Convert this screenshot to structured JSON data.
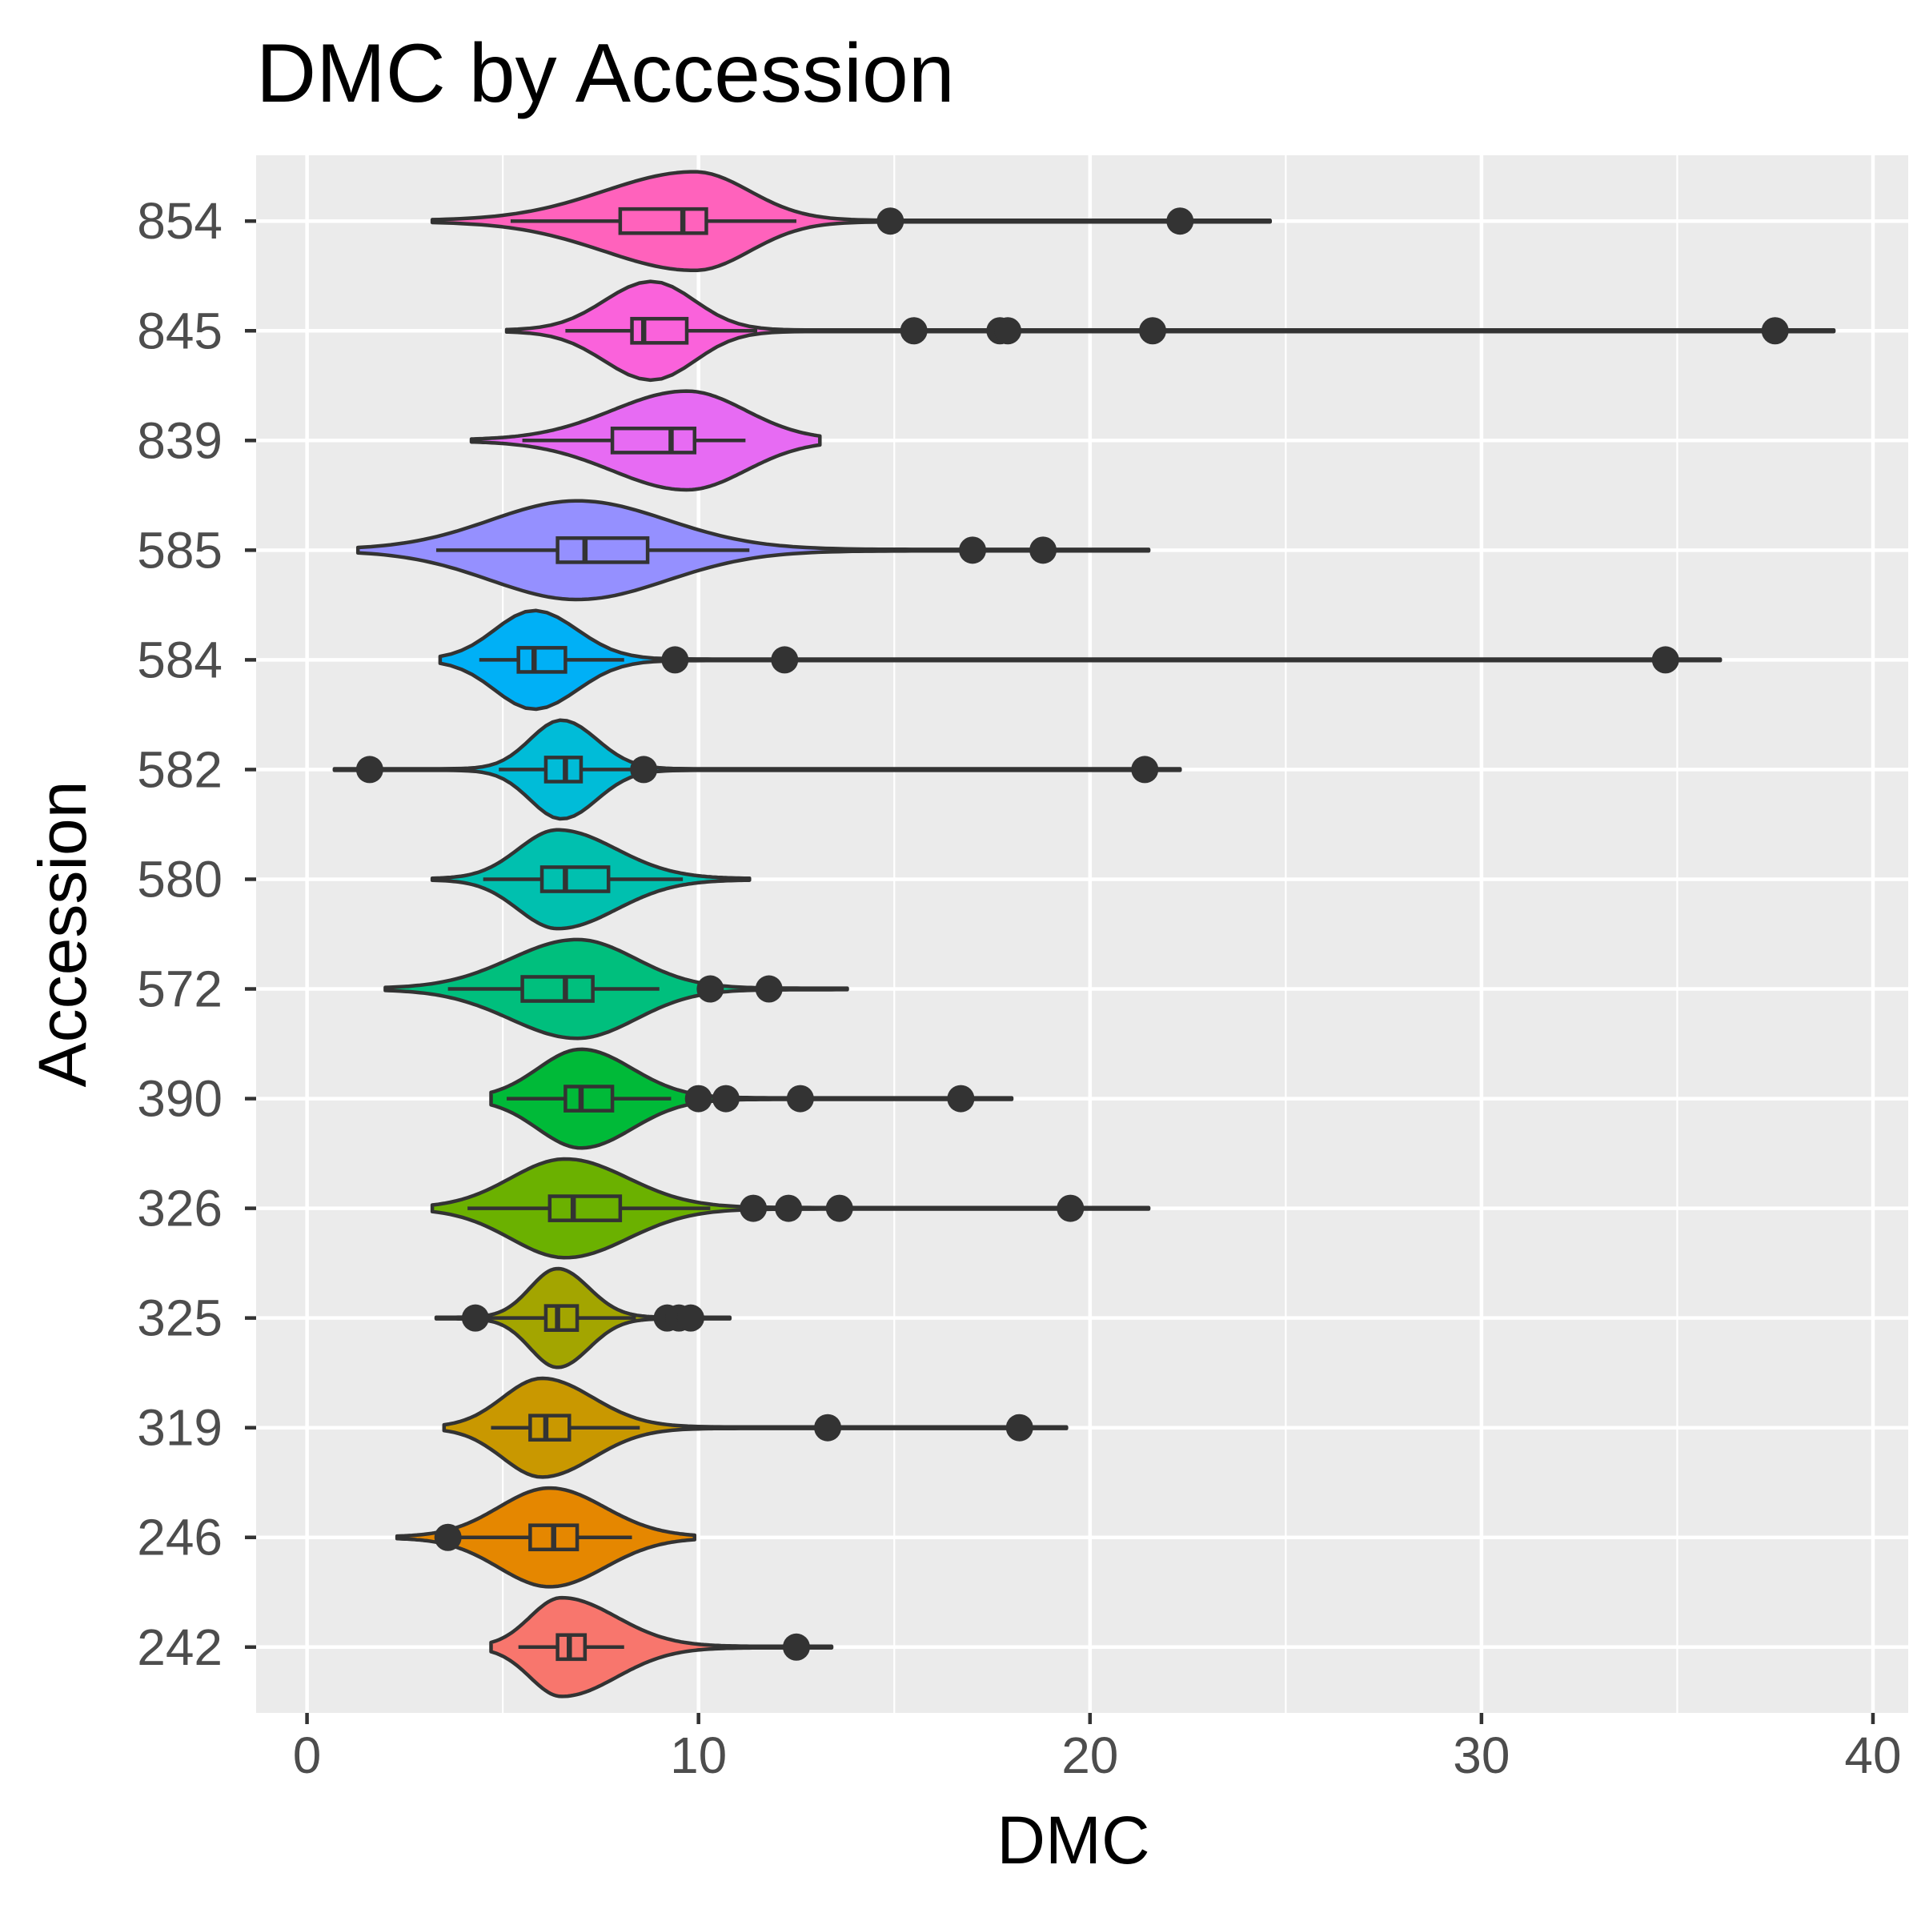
{
  "chart_data": {
    "type": "violin",
    "title": "DMC by Accession",
    "xlabel": "DMC",
    "ylabel": "Accession",
    "xlim": [
      -1.3,
      40.9
    ],
    "xticks": [
      0,
      10,
      20,
      30,
      40
    ],
    "orientation": "horizontal",
    "grid": true,
    "legend": "none",
    "categories": [
      "242",
      "246",
      "319",
      "325",
      "326",
      "390",
      "572",
      "580",
      "582",
      "584",
      "585",
      "839",
      "845",
      "854"
    ],
    "series": [
      {
        "name": "242",
        "color": "#F8766D",
        "min": 4.7,
        "max": 13.4,
        "q1": 6.4,
        "median": 6.7,
        "q3": 7.1,
        "whisker_low": 5.4,
        "whisker_high": 8.1,
        "mode": 6.5,
        "spread_left": 0.8,
        "spread_right": 1.4,
        "outliers": [
          12.5
        ]
      },
      {
        "name": "246",
        "color": "#E58700",
        "min": 2.3,
        "max": 9.9,
        "q1": 5.7,
        "median": 6.3,
        "q3": 6.9,
        "whisker_low": 3.9,
        "whisker_high": 8.3,
        "mode": 6.2,
        "spread_left": 1.3,
        "spread_right": 1.4,
        "outliers": [
          3.6
        ]
      },
      {
        "name": "319",
        "color": "#C99800",
        "min": 3.5,
        "max": 19.4,
        "q1": 5.7,
        "median": 6.1,
        "q3": 6.7,
        "whisker_low": 4.7,
        "whisker_high": 8.5,
        "mode": 6.0,
        "spread_left": 1.0,
        "spread_right": 1.3,
        "outliers": [
          13.3,
          18.2
        ]
      },
      {
        "name": "325",
        "color": "#A3A500",
        "min": 3.3,
        "max": 10.8,
        "q1": 6.1,
        "median": 6.4,
        "q3": 6.9,
        "whisker_low": 4.6,
        "whisker_high": 8.4,
        "mode": 6.4,
        "spread_left": 0.7,
        "spread_right": 0.8,
        "outliers": [
          4.3,
          9.2,
          9.5,
          9.8
        ]
      },
      {
        "name": "326",
        "color": "#6BB100",
        "min": 3.2,
        "max": 21.5,
        "q1": 6.2,
        "median": 6.8,
        "q3": 8.0,
        "whisker_low": 4.1,
        "whisker_high": 10.3,
        "mode": 6.6,
        "spread_left": 1.4,
        "spread_right": 1.6,
        "outliers": [
          11.4,
          12.3,
          13.6,
          19.5
        ]
      },
      {
        "name": "390",
        "color": "#00BA38",
        "min": 4.7,
        "max": 18.0,
        "q1": 6.6,
        "median": 7.0,
        "q3": 7.8,
        "whisker_low": 5.1,
        "whisker_high": 9.3,
        "mode": 7.0,
        "spread_left": 1.1,
        "spread_right": 1.3,
        "outliers": [
          10.0,
          10.7,
          12.6,
          16.7
        ]
      },
      {
        "name": "572",
        "color": "#00BF7D",
        "min": 2.0,
        "max": 13.8,
        "q1": 5.5,
        "median": 6.6,
        "q3": 7.3,
        "whisker_low": 3.6,
        "whisker_high": 9.0,
        "mode": 6.9,
        "spread_left": 1.7,
        "spread_right": 1.5,
        "outliers": [
          10.3,
          11.8
        ]
      },
      {
        "name": "580",
        "color": "#00C0AF",
        "min": 3.2,
        "max": 11.3,
        "q1": 6.0,
        "median": 6.6,
        "q3": 7.7,
        "whisker_low": 4.5,
        "whisker_high": 9.6,
        "mode": 6.4,
        "spread_left": 1.0,
        "spread_right": 1.5,
        "outliers": []
      },
      {
        "name": "582",
        "color": "#00BCD8",
        "min": 0.7,
        "max": 22.3,
        "q1": 6.1,
        "median": 6.6,
        "q3": 7.0,
        "whisker_low": 4.9,
        "whisker_high": 8.3,
        "mode": 6.5,
        "spread_left": 0.8,
        "spread_right": 0.9,
        "outliers": [
          1.6,
          8.6,
          21.4
        ]
      },
      {
        "name": "584",
        "color": "#00B0F6",
        "min": 3.4,
        "max": 36.1,
        "q1": 5.4,
        "median": 5.8,
        "q3": 6.6,
        "whisker_low": 4.4,
        "whisker_high": 8.1,
        "mode": 5.8,
        "spread_left": 1.0,
        "spread_right": 1.1,
        "outliers": [
          9.4,
          12.2,
          34.7
        ]
      },
      {
        "name": "585",
        "color": "#9590FF",
        "min": 1.3,
        "max": 21.5,
        "q1": 6.4,
        "median": 7.1,
        "q3": 8.7,
        "whisker_low": 3.3,
        "whisker_high": 11.3,
        "mode": 6.9,
        "spread_left": 2.2,
        "spread_right": 2.3,
        "outliers": [
          17.0,
          18.8
        ]
      },
      {
        "name": "839",
        "color": "#E76BF3",
        "min": 4.2,
        "max": 13.1,
        "q1": 7.8,
        "median": 9.3,
        "q3": 9.9,
        "whisker_low": 5.5,
        "whisker_high": 11.2,
        "mode": 9.7,
        "spread_left": 1.9,
        "spread_right": 1.5,
        "outliers": []
      },
      {
        "name": "845",
        "color": "#FA62DB",
        "min": 5.1,
        "max": 39.0,
        "q1": 8.3,
        "median": 8.6,
        "q3": 9.7,
        "whisker_low": 6.6,
        "whisker_high": 11.5,
        "mode": 8.8,
        "spread_left": 1.2,
        "spread_right": 1.1,
        "outliers": [
          15.5,
          17.7,
          17.9,
          21.6,
          37.5
        ]
      },
      {
        "name": "854",
        "color": "#FF62BC",
        "min": 3.2,
        "max": 24.6,
        "q1": 8.0,
        "median": 9.6,
        "q3": 10.2,
        "whisker_low": 5.2,
        "whisker_high": 12.5,
        "mode": 9.9,
        "spread_left": 2.3,
        "spread_right": 1.4,
        "outliers": [
          14.9,
          22.3
        ]
      }
    ]
  }
}
